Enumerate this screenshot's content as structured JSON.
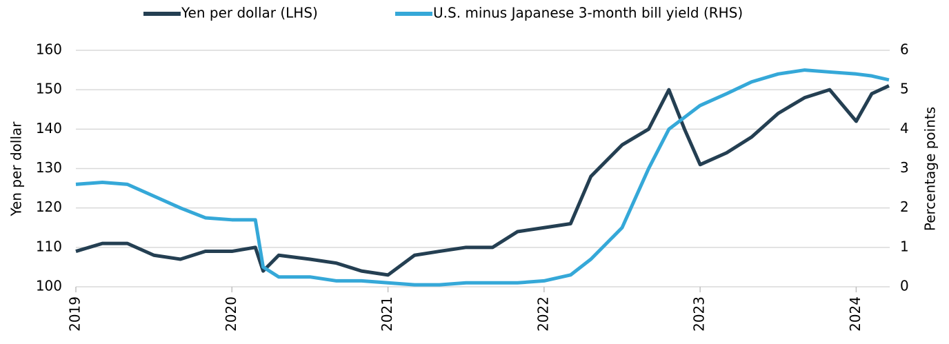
{
  "chart_data": {
    "type": "line",
    "x": [
      2019.0,
      2019.17,
      2019.33,
      2019.5,
      2019.67,
      2019.83,
      2020.0,
      2020.15,
      2020.2,
      2020.3,
      2020.5,
      2020.67,
      2020.83,
      2021.0,
      2021.17,
      2021.33,
      2021.5,
      2021.67,
      2021.83,
      2022.0,
      2022.17,
      2022.3,
      2022.5,
      2022.67,
      2022.8,
      2022.9,
      2023.0,
      2023.17,
      2023.33,
      2023.5,
      2023.67,
      2023.83,
      2024.0,
      2024.1,
      2024.21
    ],
    "series": [
      {
        "name": "Yen per dollar (LHS)",
        "color": "#243f52",
        "axis": "y",
        "values": [
          109,
          111,
          111,
          108,
          107,
          109,
          109,
          110,
          104,
          108,
          107,
          106,
          104,
          103,
          108,
          109,
          110,
          110,
          114,
          115,
          116,
          128,
          136,
          140,
          150,
          140,
          131,
          134,
          138,
          144,
          148,
          150,
          142,
          149,
          151
        ]
      },
      {
        "name": "U.S. minus Japanese 3-month bill yield (RHS)",
        "color": "#35a8d8",
        "axis": "y2",
        "values": [
          2.6,
          2.65,
          2.6,
          2.3,
          2.0,
          1.75,
          1.7,
          1.7,
          0.5,
          0.25,
          0.25,
          0.15,
          0.15,
          0.1,
          0.05,
          0.05,
          0.1,
          0.1,
          0.1,
          0.15,
          0.3,
          0.7,
          1.5,
          3.0,
          4.0,
          4.3,
          4.6,
          4.9,
          5.2,
          5.4,
          5.5,
          5.45,
          5.4,
          5.35,
          5.25
        ]
      }
    ],
    "ylabel": "Yen per dollar",
    "y2label": "Percentage points",
    "xlim": [
      2019,
      2024.25
    ],
    "xticks": [
      2019,
      2020,
      2021,
      2022,
      2023,
      2024
    ],
    "ylim": [
      100,
      160
    ],
    "yticks": [
      100,
      110,
      120,
      130,
      140,
      150,
      160
    ],
    "y2lim": [
      0,
      6
    ],
    "y2ticks": [
      0,
      1,
      2,
      3,
      4,
      5,
      6
    ],
    "grid": true,
    "legend": "top"
  }
}
